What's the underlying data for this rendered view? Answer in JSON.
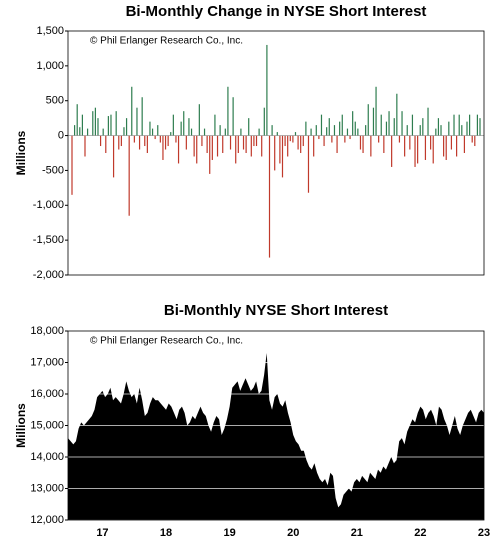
{
  "chart_data": [
    {
      "type": "bar",
      "title": "Bi-Monthly Change in NYSE Short Interest",
      "annotation": "© Phil Erlanger Research Co., Inc.",
      "ylabel": "Millions",
      "ylim": [
        -2000,
        1500
      ],
      "yticks": [
        {
          "value": -2000,
          "label": "-2,000"
        },
        {
          "value": -1500,
          "label": "-1,500"
        },
        {
          "value": -1000,
          "label": "-1,000"
        },
        -500,
        0,
        500,
        {
          "value": 1000,
          "label": "1,000"
        },
        {
          "value": 1500,
          "label": "1,500"
        }
      ],
      "grid": false,
      "color_positive": "#2e7d4f",
      "color_negative": "#c0392b",
      "values": [
        -850,
        150,
        450,
        120,
        300,
        -300,
        100,
        0,
        350,
        400,
        250,
        -150,
        100,
        -250,
        280,
        300,
        -600,
        350,
        -200,
        -150,
        120,
        250,
        -1150,
        700,
        -100,
        400,
        -200,
        550,
        -150,
        -250,
        200,
        100,
        -50,
        150,
        -100,
        -350,
        -200,
        -150,
        50,
        300,
        -100,
        -400,
        200,
        350,
        -200,
        250,
        100,
        -300,
        -400,
        450,
        -150,
        100,
        -250,
        -550,
        -350,
        300,
        -300,
        150,
        -250,
        100,
        700,
        -200,
        550,
        -400,
        -250,
        100,
        -200,
        -250,
        250,
        -300,
        -150,
        -150,
        100,
        -300,
        400,
        1300,
        -1750,
        150,
        -500,
        50,
        -400,
        -600,
        -150,
        -300,
        -80,
        -100,
        50,
        -200,
        -250,
        -150,
        200,
        -820,
        100,
        -300,
        150,
        -50,
        300,
        -150,
        120,
        250,
        -100,
        150,
        -250,
        200,
        300,
        -100,
        100,
        -50,
        350,
        200,
        100,
        -200,
        -250,
        150,
        450,
        -300,
        400,
        700,
        -100,
        300,
        -250,
        200,
        350,
        -450,
        250,
        600,
        -100,
        350,
        -300,
        150,
        -200,
        300,
        -450,
        -400,
        150,
        250,
        -350,
        400,
        -200,
        -400,
        100,
        250,
        150,
        -300,
        -350,
        200,
        -200,
        300,
        -300,
        300,
        150,
        -250,
        200,
        300,
        -100,
        -150,
        300,
        250
      ]
    },
    {
      "type": "area",
      "title": "Bi-Monthly NYSE Short Interest",
      "annotation": "© Phil Erlanger Research Co., Inc.",
      "ylabel": "Millions",
      "ylim": [
        12000,
        18000
      ],
      "yticks": [
        {
          "value": 12000,
          "label": "12,000"
        },
        {
          "value": 13000,
          "label": "13,000"
        },
        {
          "value": 14000,
          "label": "14,000"
        },
        {
          "value": 15000,
          "label": "15,000"
        },
        {
          "value": 16000,
          "label": "16,000"
        },
        {
          "value": 17000,
          "label": "17,000"
        },
        {
          "value": 18000,
          "label": "18,000"
        }
      ],
      "grid": true,
      "color": "#000000",
      "categories": [
        null,
        null,
        null,
        null,
        null,
        null,
        null,
        null,
        null,
        null,
        null,
        null,
        null,
        "17",
        null,
        null,
        null,
        null,
        null,
        null,
        null,
        null,
        null,
        null,
        null,
        null,
        null,
        null,
        null,
        null,
        null,
        null,
        null,
        null,
        null,
        null,
        null,
        "18",
        null,
        null,
        null,
        null,
        null,
        null,
        null,
        null,
        null,
        null,
        null,
        null,
        null,
        null,
        null,
        null,
        null,
        null,
        null,
        null,
        null,
        null,
        null,
        "19",
        null,
        null,
        null,
        null,
        null,
        null,
        null,
        null,
        null,
        null,
        null,
        null,
        null,
        null,
        null,
        null,
        null,
        null,
        null,
        null,
        null,
        null,
        null,
        "20",
        null,
        null,
        null,
        null,
        null,
        null,
        null,
        null,
        null,
        null,
        null,
        null,
        null,
        null,
        null,
        null,
        null,
        null,
        null,
        null,
        null,
        null,
        null,
        "21",
        null,
        null,
        null,
        null,
        null,
        null,
        null,
        null,
        null,
        null,
        null,
        null,
        null,
        null,
        null,
        null,
        null,
        null,
        null,
        null,
        null,
        null,
        null,
        "22",
        null,
        null,
        null,
        null,
        null,
        null,
        null,
        null,
        null,
        null,
        null,
        null,
        null,
        null,
        null,
        null,
        null,
        null,
        null,
        null,
        null,
        null,
        null,
        "23"
      ],
      "values": [
        14600,
        14500,
        14400,
        14500,
        14900,
        15100,
        15000,
        15100,
        15200,
        15300,
        15500,
        15900,
        16000,
        16100,
        15900,
        16000,
        16200,
        15800,
        15900,
        15800,
        15700,
        16000,
        16400,
        16100,
        15900,
        16000,
        15700,
        16200,
        15800,
        15300,
        15400,
        15700,
        15900,
        15800,
        15800,
        15700,
        15600,
        15500,
        15700,
        15600,
        15400,
        15200,
        15500,
        15600,
        15400,
        15000,
        15100,
        15300,
        15200,
        15400,
        15600,
        15400,
        15300,
        15000,
        14800,
        15100,
        15300,
        15200,
        14700,
        14900,
        15200,
        15600,
        16200,
        16300,
        16400,
        16100,
        16300,
        16500,
        16300,
        16100,
        16200,
        16400,
        16000,
        16100,
        16600,
        17300,
        15800,
        15500,
        15900,
        16000,
        15700,
        15600,
        15800,
        15400,
        15100,
        14700,
        14500,
        14400,
        14200,
        14200,
        13900,
        13700,
        13600,
        13800,
        13500,
        13300,
        13200,
        13300,
        13100,
        13500,
        13400,
        12700,
        12400,
        12500,
        12800,
        12900,
        13000,
        12900,
        13200,
        13300,
        13200,
        13400,
        13300,
        13200,
        13500,
        13400,
        13300,
        13600,
        13500,
        13700,
        13600,
        13800,
        14000,
        13800,
        13900,
        14500,
        14600,
        14400,
        14800,
        15000,
        15200,
        15100,
        15400,
        15600,
        15500,
        15200,
        15400,
        15500,
        15300,
        15000,
        15600,
        15500,
        15200,
        15000,
        14700,
        15000,
        15300,
        14900,
        14700,
        15000,
        15200,
        15400,
        15500,
        15300,
        15100,
        15400,
        15500,
        15400
      ]
    }
  ]
}
